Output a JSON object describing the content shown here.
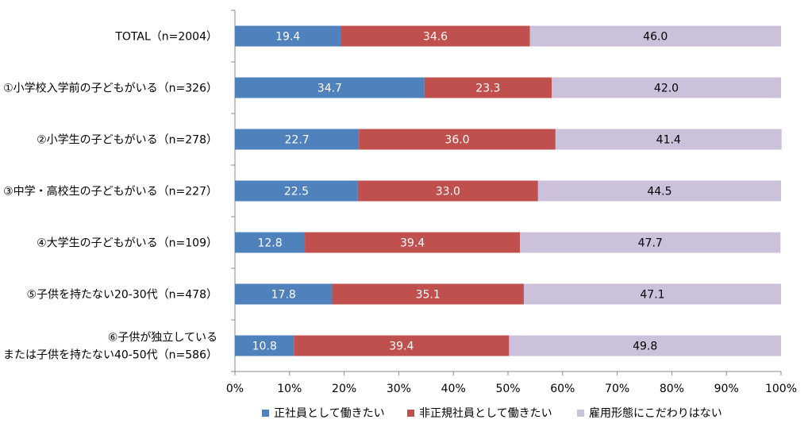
{
  "chart_data": {
    "type": "bar",
    "orientation": "horizontal",
    "stacked": true,
    "categories": [
      [
        "TOTAL（n=2004）"
      ],
      [
        "①小学校入学前の子どもがいる（n=326）"
      ],
      [
        "②小学生の子どもがいる（n=278）"
      ],
      [
        "③中学・高校生の子どもがいる（n=227）"
      ],
      [
        "④大学生の子どもがいる（n=109）"
      ],
      [
        "⑤子供を持たない20-30代（n=478）"
      ],
      [
        "⑥子供が独立している",
        "または子供を持たない40-50代（n=586）"
      ]
    ],
    "series": [
      {
        "name": "正社員として働きたい",
        "color": "#4F81BD",
        "label_color": "#ffffff",
        "values": [
          19.4,
          34.7,
          22.7,
          22.5,
          12.8,
          17.8,
          10.8
        ]
      },
      {
        "name": "非正規社員として働きたい",
        "color": "#C0504D",
        "label_color": "#ffffff",
        "values": [
          34.6,
          23.3,
          36.0,
          33.0,
          39.4,
          35.1,
          39.4
        ]
      },
      {
        "name": "雇用形態にこだわりはない",
        "color": "#CCC1DA",
        "label_color": "#000000",
        "values": [
          46.0,
          42.0,
          41.4,
          44.5,
          47.7,
          47.1,
          49.8
        ]
      }
    ],
    "xlim": [
      0,
      100
    ],
    "xticks": [
      "0%",
      "10%",
      "20%",
      "30%",
      "40%",
      "50%",
      "60%",
      "70%",
      "80%",
      "90%",
      "100%"
    ],
    "legend_position": "bottom",
    "grid": false
  }
}
